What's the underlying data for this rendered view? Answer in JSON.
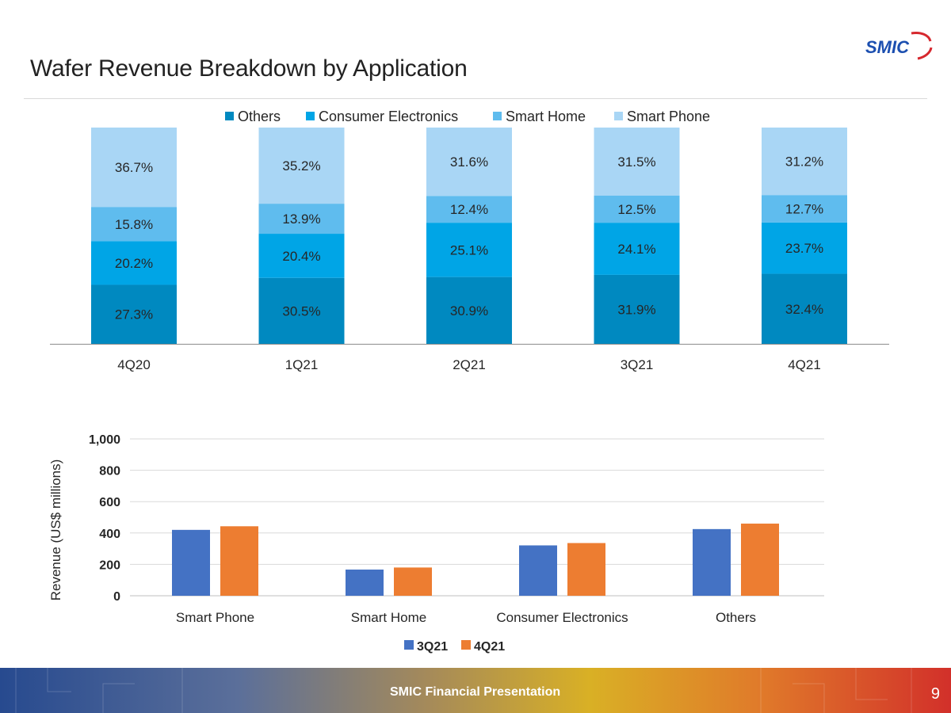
{
  "page": {
    "title": "Wafer Revenue Breakdown by Application",
    "logo_text": "SMIC",
    "footer_text": "SMIC Financial Presentation",
    "page_number": "9"
  },
  "colors": {
    "brand_blue": "#1c4fb0",
    "brand_red": "#d6282e",
    "others": "#0089c0",
    "consumer_electronics": "#00a5e6",
    "smart_home": "#5fbcee",
    "smart_phone": "#a9d6f5",
    "q3": "#4472c4",
    "q4": "#ed7d31"
  },
  "chart_data": [
    {
      "type": "bar",
      "stacked": true,
      "title": "",
      "xlabel": "",
      "ylabel": "",
      "legend_position": "top",
      "grid": false,
      "ylim": [
        0,
        100
      ],
      "categories": [
        "4Q20",
        "1Q21",
        "2Q21",
        "3Q21",
        "4Q21"
      ],
      "series": [
        {
          "name": "Others",
          "color": "#0089c0",
          "values": [
            27.3,
            30.5,
            30.9,
            31.9,
            32.4
          ],
          "labels": [
            "27.3%",
            "30.5%",
            "30.9%",
            "31.9%",
            "32.4%"
          ]
        },
        {
          "name": "Consumer Electronics",
          "color": "#00a5e6",
          "values": [
            20.2,
            20.4,
            25.1,
            24.1,
            23.7
          ],
          "labels": [
            "20.2%",
            "20.4%",
            "25.1%",
            "24.1%",
            "23.7%"
          ]
        },
        {
          "name": "Smart Home",
          "color": "#5fbcee",
          "values": [
            15.8,
            13.9,
            12.4,
            12.5,
            12.7
          ],
          "labels": [
            "15.8%",
            "13.9%",
            "12.4%",
            "12.5%",
            "12.7%"
          ]
        },
        {
          "name": "Smart Phone",
          "color": "#a9d6f5",
          "values": [
            36.7,
            35.2,
            31.6,
            31.5,
            31.2
          ],
          "labels": [
            "36.7%",
            "35.2%",
            "31.6%",
            "31.5%",
            "31.2%"
          ]
        }
      ]
    },
    {
      "type": "bar",
      "title": "",
      "xlabel": "",
      "ylabel": "Revenue (US$  millions)",
      "legend_position": "bottom",
      "grid": true,
      "ylim": [
        0,
        1000
      ],
      "yticks": [
        0,
        200,
        400,
        600,
        800,
        1000
      ],
      "ytick_labels": [
        "0",
        "200",
        "400",
        "600",
        "800",
        "1,000"
      ],
      "categories": [
        "Smart Phone",
        "Smart Home",
        "Consumer Electronics",
        "Others"
      ],
      "series": [
        {
          "name": "3Q21",
          "color": "#4472c4",
          "values": [
            420,
            167,
            321,
            425
          ]
        },
        {
          "name": "4Q21",
          "color": "#ed7d31",
          "values": [
            443,
            180,
            336,
            460
          ]
        }
      ]
    }
  ]
}
